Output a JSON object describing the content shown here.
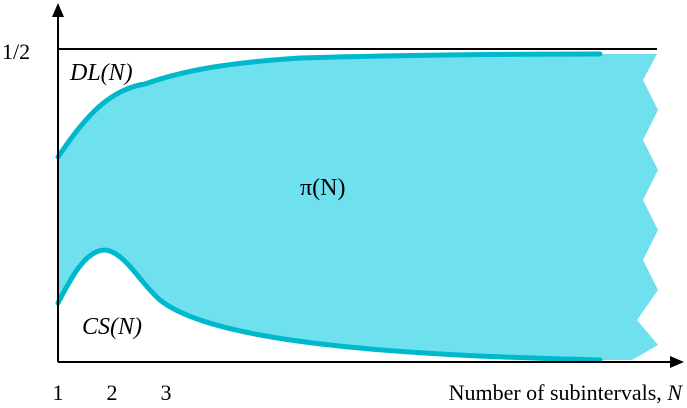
{
  "chart_data": {
    "type": "area",
    "x_ticks": [
      "1",
      "2",
      "3"
    ],
    "y_tick": "1/2",
    "xlabel": "Number of subintervals, ",
    "xlabel_var": "N",
    "region_label": "π(N)",
    "upper_curve_label": "DL(N)",
    "lower_curve_label": "CS(N)",
    "colors": {
      "fill": "#6ee0ee",
      "curve": "#00b8cc",
      "axis": "#000000"
    }
  }
}
